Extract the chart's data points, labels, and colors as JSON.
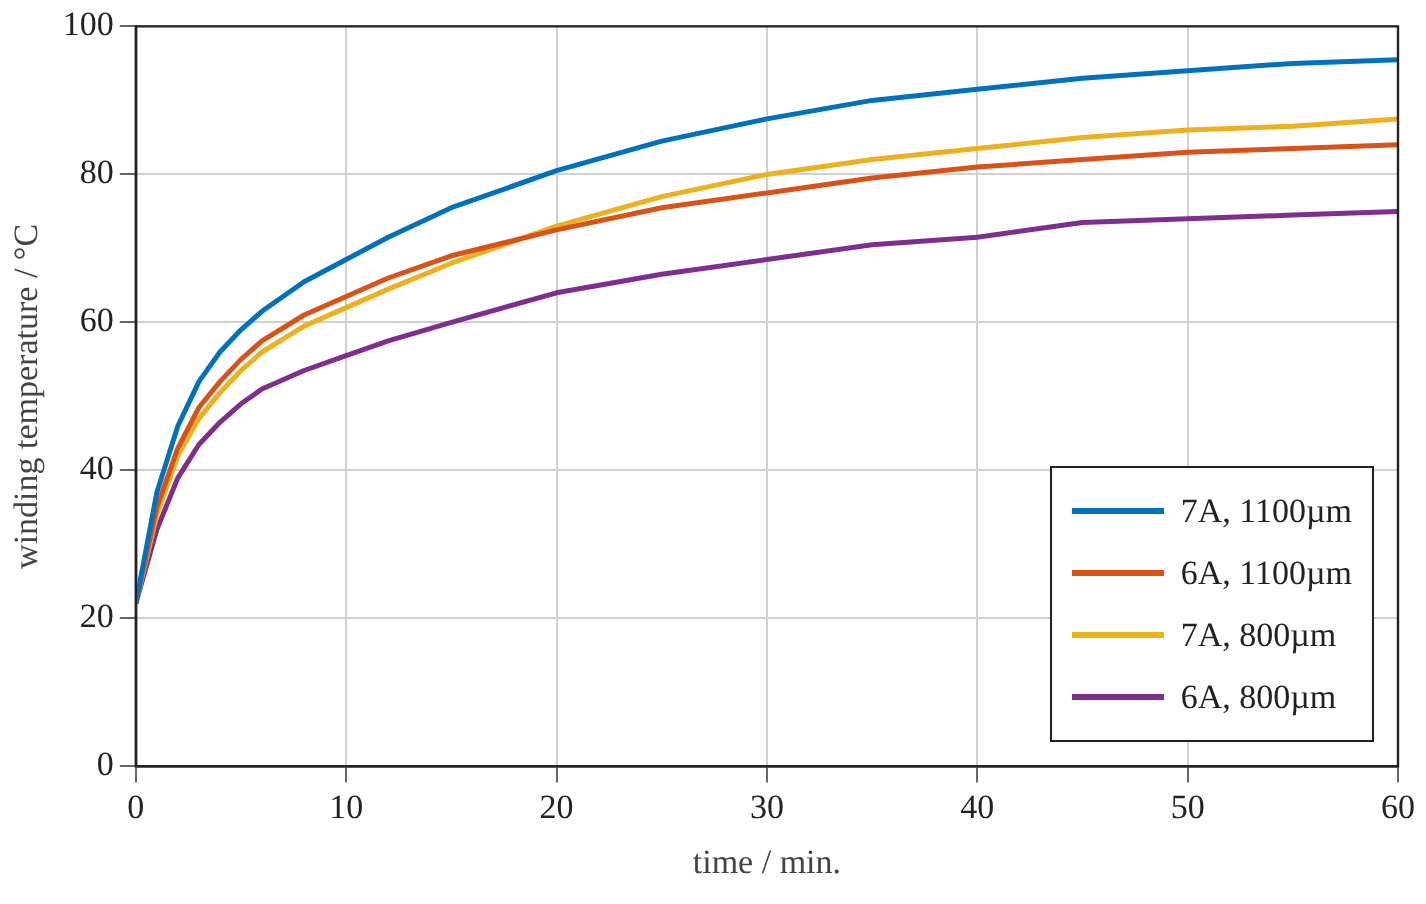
{
  "chart_data": {
    "type": "line",
    "xlabel": "time / min.",
    "ylabel": "winding temperature / °C",
    "x": [
      0,
      1,
      2,
      3,
      4,
      5,
      6,
      8,
      10,
      12,
      15,
      20,
      25,
      30,
      35,
      40,
      45,
      50,
      55,
      60
    ],
    "series": [
      {
        "name": "7A, 1100µm",
        "color": "#0072bd",
        "values": [
          22,
          37,
          46,
          52,
          56,
          59,
          61.5,
          65.5,
          68.5,
          71.5,
          75.5,
          80.5,
          84.5,
          87.5,
          90,
          91.5,
          93,
          94,
          95,
          95.5
        ]
      },
      {
        "name": "6A, 1100µm",
        "color": "#d95319",
        "values": [
          22,
          35,
          43,
          48.5,
          52,
          55,
          57.5,
          61,
          63.5,
          66,
          69,
          72.5,
          75.5,
          77.5,
          79.5,
          81,
          82,
          83,
          83.5,
          84
        ]
      },
      {
        "name": "7A, 800µm",
        "color": "#edb120",
        "values": [
          22,
          34,
          42,
          47,
          50.5,
          53.5,
          56,
          59.5,
          62,
          64.5,
          68,
          73,
          77,
          80,
          82,
          83.5,
          85,
          86,
          86.5,
          87.5
        ]
      },
      {
        "name": "6A, 800µm",
        "color": "#7e2f8e",
        "values": [
          22,
          32,
          39,
          43.5,
          46.5,
          49,
          51,
          53.5,
          55.5,
          57.5,
          60,
          64,
          66.5,
          68.5,
          70.5,
          71.5,
          73.5,
          74,
          74.5,
          75
        ]
      }
    ],
    "xlim": [
      0,
      60
    ],
    "xticks": [
      0,
      10,
      20,
      30,
      40,
      50,
      60
    ],
    "ylim": [
      0,
      100
    ],
    "yticks": [
      0,
      20,
      40,
      60,
      80,
      100
    ],
    "grid": true,
    "legend": "bottom right",
    "line_style": "solid"
  }
}
